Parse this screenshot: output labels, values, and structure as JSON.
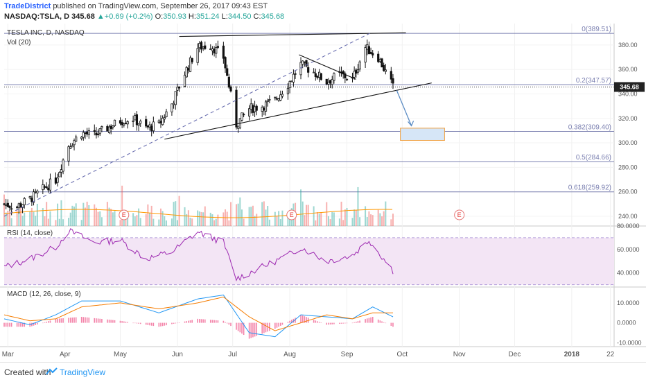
{
  "header": {
    "author": "TradeDistrict",
    "published_text": "published on TradingView.com, September 26, 2017 09:43 EST",
    "symbol": "NASDAQ:TSLA, D",
    "price": "345.68",
    "change": "▲+0.69 (+0.2%)",
    "o_label": "O:",
    "o_value": "350.93",
    "h_label": "H:",
    "h_value": "351.24",
    "l_label": "L:",
    "l_value": "344.50",
    "c_label": "C:",
    "c_value": "345.68"
  },
  "footer": {
    "created": "Created with",
    "brand": "TradingView"
  },
  "chart_data": {
    "type": "candlestick",
    "title": "TESLA INC, D, NASDAQ",
    "volume_label": "Vol (20)",
    "x_ticks": [
      "Mar",
      "Apr",
      "May",
      "Jun",
      "Jul",
      "Aug",
      "Sep",
      "Oct",
      "Nov",
      "Dec",
      "2018",
      "22"
    ],
    "y_ticks": [
      "380.00",
      "360.00",
      "340.00",
      "320.00",
      "300.00",
      "280.00",
      "260.00",
      "240.00"
    ],
    "ylim": [
      232,
      393
    ],
    "last_price": "345.68",
    "earnings_markers": [
      "E",
      "E",
      "E"
    ],
    "fib_levels": [
      {
        "label": "0(389.51)",
        "value": 389.51
      },
      {
        "label": "0.2(347.57)",
        "value": 347.57
      },
      {
        "label": "0.382(309.40)",
        "value": 309.4
      },
      {
        "label": "0.5(284.66)",
        "value": 284.66
      },
      {
        "label": "0.618(259.92)",
        "value": 259.92
      }
    ],
    "price_path": [
      [
        "2017-02-27",
        250
      ],
      [
        "2017-03-06",
        248
      ],
      [
        "2017-03-13",
        254
      ],
      [
        "2017-03-20",
        262
      ],
      [
        "2017-03-27",
        270
      ],
      [
        "2017-04-03",
        298
      ],
      [
        "2017-04-10",
        308
      ],
      [
        "2017-04-17",
        306
      ],
      [
        "2017-04-24",
        312
      ],
      [
        "2017-05-01",
        318
      ],
      [
        "2017-05-08",
        320
      ],
      [
        "2017-05-15",
        312
      ],
      [
        "2017-05-22",
        315
      ],
      [
        "2017-05-29",
        332
      ],
      [
        "2017-06-05",
        357
      ],
      [
        "2017-06-12",
        378
      ],
      [
        "2017-06-19",
        380
      ],
      [
        "2017-06-26",
        370
      ],
      [
        "2017-07-03",
        315
      ],
      [
        "2017-07-10",
        328
      ],
      [
        "2017-07-17",
        330
      ],
      [
        "2017-07-24",
        335
      ],
      [
        "2017-07-31",
        348
      ],
      [
        "2017-08-07",
        364
      ],
      [
        "2017-08-14",
        358
      ],
      [
        "2017-08-21",
        350
      ],
      [
        "2017-08-28",
        356
      ],
      [
        "2017-09-04",
        352
      ],
      [
        "2017-09-11",
        378
      ],
      [
        "2017-09-18",
        370
      ],
      [
        "2017-09-26",
        345.68
      ]
    ],
    "rsi": {
      "label": "RSI (14, close)",
      "y_ticks": [
        "80.0000",
        "60.0000",
        "40.0000"
      ],
      "ylim": [
        28,
        80
      ],
      "upper_band": 70,
      "lower_band": 30,
      "path": [
        [
          "2017-02-27",
          45
        ],
        [
          "2017-03-13",
          52
        ],
        [
          "2017-03-27",
          62
        ],
        [
          "2017-04-03",
          76
        ],
        [
          "2017-04-17",
          66
        ],
        [
          "2017-05-01",
          68
        ],
        [
          "2017-05-15",
          52
        ],
        [
          "2017-05-29",
          58
        ],
        [
          "2017-06-12",
          75
        ],
        [
          "2017-06-26",
          66
        ],
        [
          "2017-07-03",
          35
        ],
        [
          "2017-07-17",
          45
        ],
        [
          "2017-07-31",
          55
        ],
        [
          "2017-08-07",
          62
        ],
        [
          "2017-08-21",
          50
        ],
        [
          "2017-09-04",
          55
        ],
        [
          "2017-09-13",
          68
        ],
        [
          "2017-09-26",
          42
        ]
      ]
    },
    "macd": {
      "label": "MACD (12, 26, close, 9)",
      "y_ticks": [
        "10.0000",
        "0.0000",
        "-10.0000"
      ],
      "ylim": [
        -12,
        18
      ],
      "macd_path": [
        [
          "2017-02-27",
          2
        ],
        [
          "2017-03-13",
          -1
        ],
        [
          "2017-03-27",
          4
        ],
        [
          "2017-04-10",
          11
        ],
        [
          "2017-05-01",
          11
        ],
        [
          "2017-05-22",
          5
        ],
        [
          "2017-06-12",
          12
        ],
        [
          "2017-06-26",
          14
        ],
        [
          "2017-07-10",
          -5
        ],
        [
          "2017-07-24",
          -7
        ],
        [
          "2017-08-07",
          4
        ],
        [
          "2017-08-21",
          3
        ],
        [
          "2017-09-04",
          2
        ],
        [
          "2017-09-15",
          8
        ],
        [
          "2017-09-26",
          3
        ]
      ],
      "signal_path": [
        [
          "2017-02-27",
          4
        ],
        [
          "2017-03-13",
          1
        ],
        [
          "2017-03-27",
          2
        ],
        [
          "2017-04-10",
          8
        ],
        [
          "2017-05-01",
          10
        ],
        [
          "2017-05-22",
          7
        ],
        [
          "2017-06-12",
          10
        ],
        [
          "2017-06-26",
          13
        ],
        [
          "2017-07-10",
          3
        ],
        [
          "2017-07-24",
          -4
        ],
        [
          "2017-08-07",
          0
        ],
        [
          "2017-08-21",
          4
        ],
        [
          "2017-09-04",
          2
        ],
        [
          "2017-09-15",
          5
        ],
        [
          "2017-09-26",
          5
        ]
      ]
    },
    "trend_lines": [
      {
        "name": "rising-support",
        "from": [
          "2017-05-25",
          303
        ],
        "to": [
          "2017-10-17",
          349
        ]
      },
      {
        "name": "top-resistance",
        "from": [
          "2017-06-02",
          387
        ],
        "to": [
          "2017-10-03",
          390
        ]
      },
      {
        "name": "dashed-channel",
        "from": [
          "2017-02-27",
          240
        ],
        "to": [
          "2017-09-14",
          390
        ],
        "dashed": true
      },
      {
        "name": "triangle-upper",
        "from": [
          "2017-08-06",
          372
        ],
        "to": [
          "2017-09-06",
          352
        ]
      }
    ],
    "projection": {
      "from": [
        "2017-09-28",
        343
      ],
      "to": [
        "2017-10-06",
        314
      ],
      "target_zone": [
        302,
        312
      ]
    },
    "colors": {
      "up": "#26a69a",
      "down": "#ef5350",
      "rsi_line": "#9c27b0",
      "rsi_band": "#f3e5f5",
      "macd": "#2196f3",
      "signal": "#f57c00",
      "fib": "#7a7fb0",
      "zone": "#d6e6f7"
    }
  }
}
